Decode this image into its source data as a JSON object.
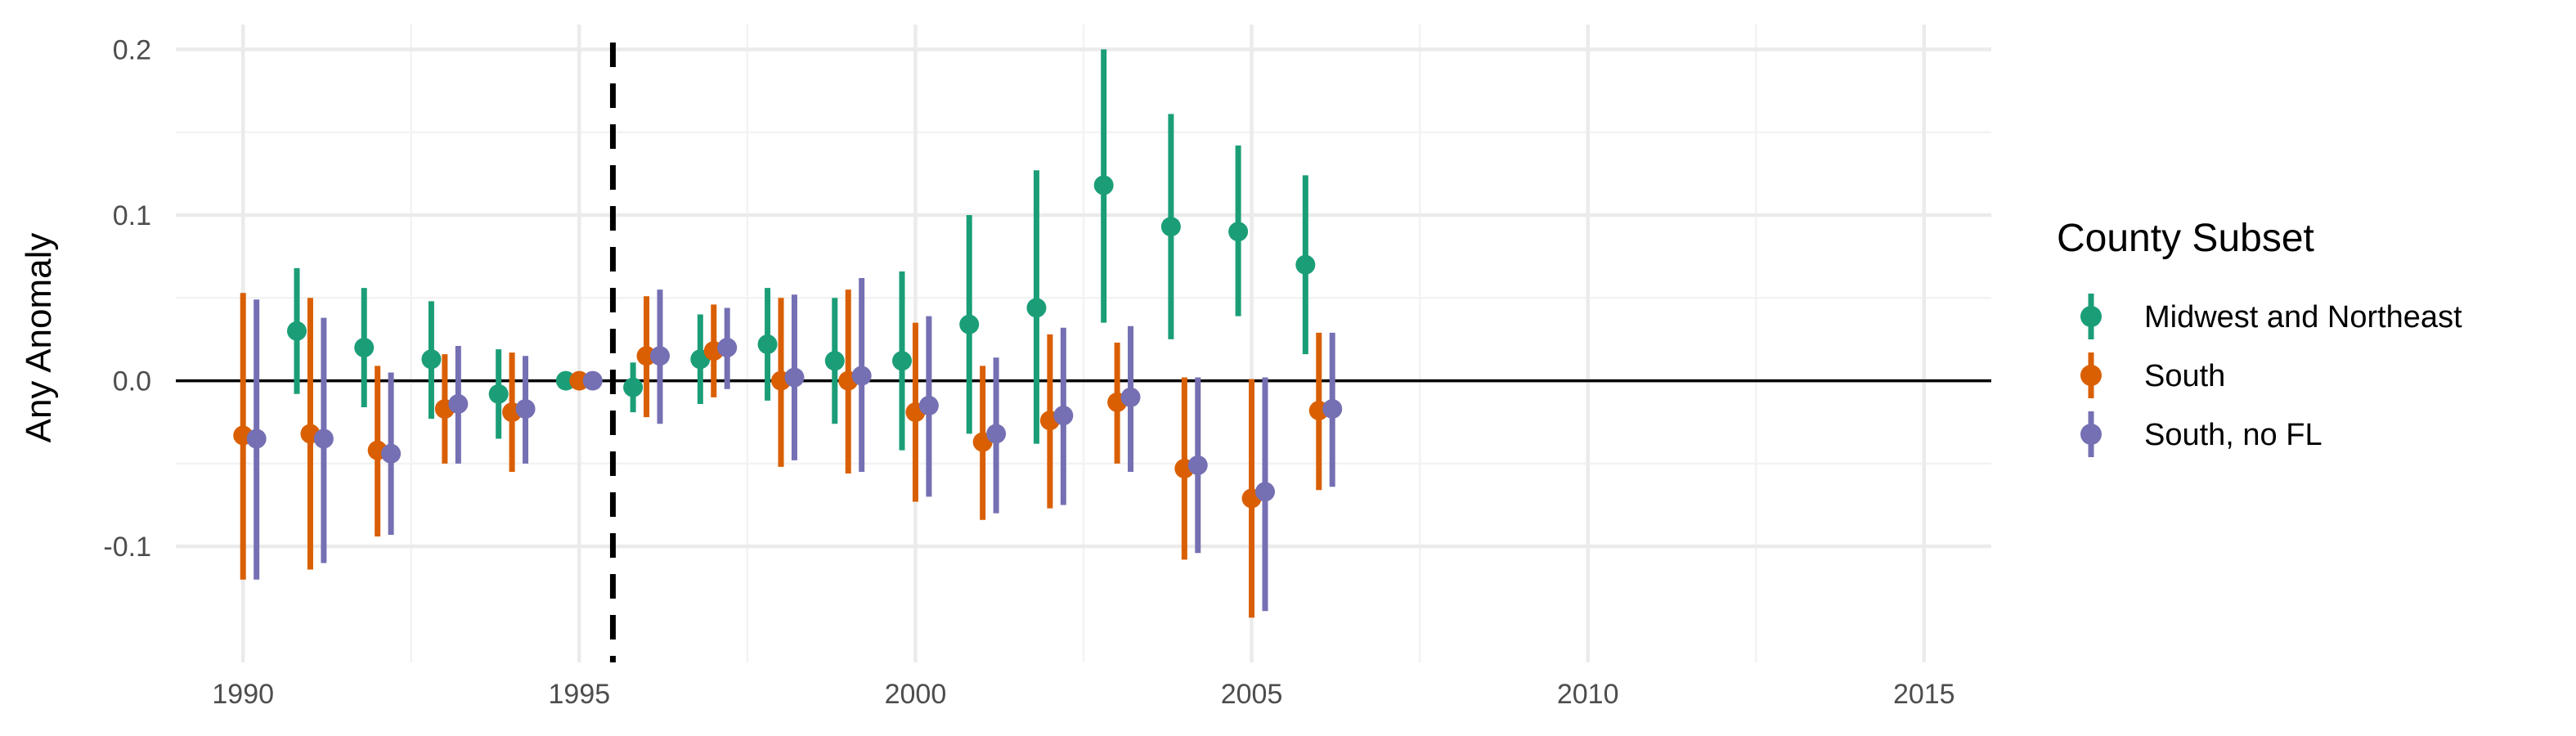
{
  "chart_data": {
    "type": "scatter",
    "subtype": "point-range (coefficient plot with error bars)",
    "title": "",
    "xlabel": "",
    "ylabel": "Any Anomaly",
    "xlim": [
      1989,
      2016
    ],
    "ylim": [
      -0.17,
      0.215
    ],
    "x_ticks": [
      1990,
      1995,
      2000,
      2005,
      2010,
      2015
    ],
    "x_tick_labels": [
      "1990",
      "1995",
      "2000",
      "2005",
      "2010",
      "2015"
    ],
    "y_ticks": [
      -0.1,
      0.0,
      0.1,
      0.2
    ],
    "y_tick_labels": [
      "-0.1",
      "0.0",
      "0.1",
      "0.2"
    ],
    "grid": true,
    "reference_lines": {
      "horizontal_y": 0,
      "vertical_dashed_x": 1995.5
    },
    "legend": {
      "title": "County Subset",
      "position": "right"
    },
    "series": [
      {
        "name": "Midwest and Northeast",
        "color": "#1B9E77",
        "points": [
          {
            "x": 1990.8,
            "y": 0.03,
            "lo": -0.008,
            "hi": 0.068
          },
          {
            "x": 1991.8,
            "y": 0.02,
            "lo": -0.016,
            "hi": 0.056
          },
          {
            "x": 1992.8,
            "y": 0.013,
            "lo": -0.023,
            "hi": 0.048
          },
          {
            "x": 1993.8,
            "y": -0.008,
            "lo": -0.035,
            "hi": 0.019
          },
          {
            "x": 1994.8,
            "y": 0.0,
            "lo": 0.0,
            "hi": 0.0
          },
          {
            "x": 1995.8,
            "y": -0.004,
            "lo": -0.019,
            "hi": 0.011
          },
          {
            "x": 1996.8,
            "y": 0.013,
            "lo": -0.014,
            "hi": 0.04
          },
          {
            "x": 1997.8,
            "y": 0.022,
            "lo": -0.012,
            "hi": 0.056
          },
          {
            "x": 1998.8,
            "y": 0.012,
            "lo": -0.026,
            "hi": 0.05
          },
          {
            "x": 1999.8,
            "y": 0.012,
            "lo": -0.042,
            "hi": 0.066
          },
          {
            "x": 2000.8,
            "y": 0.034,
            "lo": -0.032,
            "hi": 0.1
          },
          {
            "x": 2001.8,
            "y": 0.044,
            "lo": -0.038,
            "hi": 0.127
          },
          {
            "x": 2002.8,
            "y": 0.118,
            "lo": 0.035,
            "hi": 0.2
          },
          {
            "x": 2003.8,
            "y": 0.093,
            "lo": 0.025,
            "hi": 0.161
          },
          {
            "x": 2004.8,
            "y": 0.09,
            "lo": 0.039,
            "hi": 0.142
          },
          {
            "x": 2005.8,
            "y": 0.07,
            "lo": 0.016,
            "hi": 0.124
          }
        ]
      },
      {
        "name": "South",
        "color": "#D95F02",
        "points": [
          {
            "x": 1990.0,
            "y": -0.033,
            "lo": -0.12,
            "hi": 0.053
          },
          {
            "x": 1991.0,
            "y": -0.032,
            "lo": -0.114,
            "hi": 0.05
          },
          {
            "x": 1992.0,
            "y": -0.042,
            "lo": -0.094,
            "hi": 0.009
          },
          {
            "x": 1993.0,
            "y": -0.017,
            "lo": -0.05,
            "hi": 0.016
          },
          {
            "x": 1994.0,
            "y": -0.019,
            "lo": -0.055,
            "hi": 0.017
          },
          {
            "x": 1995.0,
            "y": 0.0,
            "lo": 0.0,
            "hi": 0.0
          },
          {
            "x": 1996.0,
            "y": 0.015,
            "lo": -0.022,
            "hi": 0.051
          },
          {
            "x": 1997.0,
            "y": 0.018,
            "lo": -0.01,
            "hi": 0.046
          },
          {
            "x": 1998.0,
            "y": 0.0,
            "lo": -0.052,
            "hi": 0.05
          },
          {
            "x": 1999.0,
            "y": 0.0,
            "lo": -0.056,
            "hi": 0.055
          },
          {
            "x": 2000.0,
            "y": -0.019,
            "lo": -0.073,
            "hi": 0.035
          },
          {
            "x": 2001.0,
            "y": -0.037,
            "lo": -0.084,
            "hi": 0.009
          },
          {
            "x": 2002.0,
            "y": -0.024,
            "lo": -0.077,
            "hi": 0.028
          },
          {
            "x": 2003.0,
            "y": -0.013,
            "lo": -0.05,
            "hi": 0.023
          },
          {
            "x": 2004.0,
            "y": -0.053,
            "lo": -0.108,
            "hi": 0.002
          },
          {
            "x": 2005.0,
            "y": -0.071,
            "lo": -0.143,
            "hi": 0.001
          },
          {
            "x": 2006.0,
            "y": -0.018,
            "lo": -0.066,
            "hi": 0.029
          }
        ]
      },
      {
        "name": "South, no FL",
        "color": "#7570B3",
        "points": [
          {
            "x": 1990.2,
            "y": -0.035,
            "lo": -0.12,
            "hi": 0.049
          },
          {
            "x": 1991.2,
            "y": -0.035,
            "lo": -0.11,
            "hi": 0.038
          },
          {
            "x": 1992.2,
            "y": -0.044,
            "lo": -0.093,
            "hi": 0.005
          },
          {
            "x": 1993.2,
            "y": -0.014,
            "lo": -0.05,
            "hi": 0.021
          },
          {
            "x": 1994.2,
            "y": -0.017,
            "lo": -0.05,
            "hi": 0.015
          },
          {
            "x": 1995.2,
            "y": 0.0,
            "lo": 0.0,
            "hi": 0.0
          },
          {
            "x": 1996.2,
            "y": 0.015,
            "lo": -0.026,
            "hi": 0.055
          },
          {
            "x": 1997.2,
            "y": 0.02,
            "lo": -0.005,
            "hi": 0.044
          },
          {
            "x": 1998.2,
            "y": 0.002,
            "lo": -0.048,
            "hi": 0.052
          },
          {
            "x": 1999.2,
            "y": 0.003,
            "lo": -0.055,
            "hi": 0.062
          },
          {
            "x": 2000.2,
            "y": -0.015,
            "lo": -0.07,
            "hi": 0.039
          },
          {
            "x": 2001.2,
            "y": -0.032,
            "lo": -0.08,
            "hi": 0.014
          },
          {
            "x": 2002.2,
            "y": -0.021,
            "lo": -0.075,
            "hi": 0.032
          },
          {
            "x": 2003.2,
            "y": -0.01,
            "lo": -0.055,
            "hi": 0.033
          },
          {
            "x": 2004.2,
            "y": -0.051,
            "lo": -0.104,
            "hi": 0.002
          },
          {
            "x": 2005.2,
            "y": -0.067,
            "lo": -0.139,
            "hi": 0.002
          },
          {
            "x": 2006.2,
            "y": -0.017,
            "lo": -0.064,
            "hi": 0.029
          }
        ]
      }
    ]
  }
}
